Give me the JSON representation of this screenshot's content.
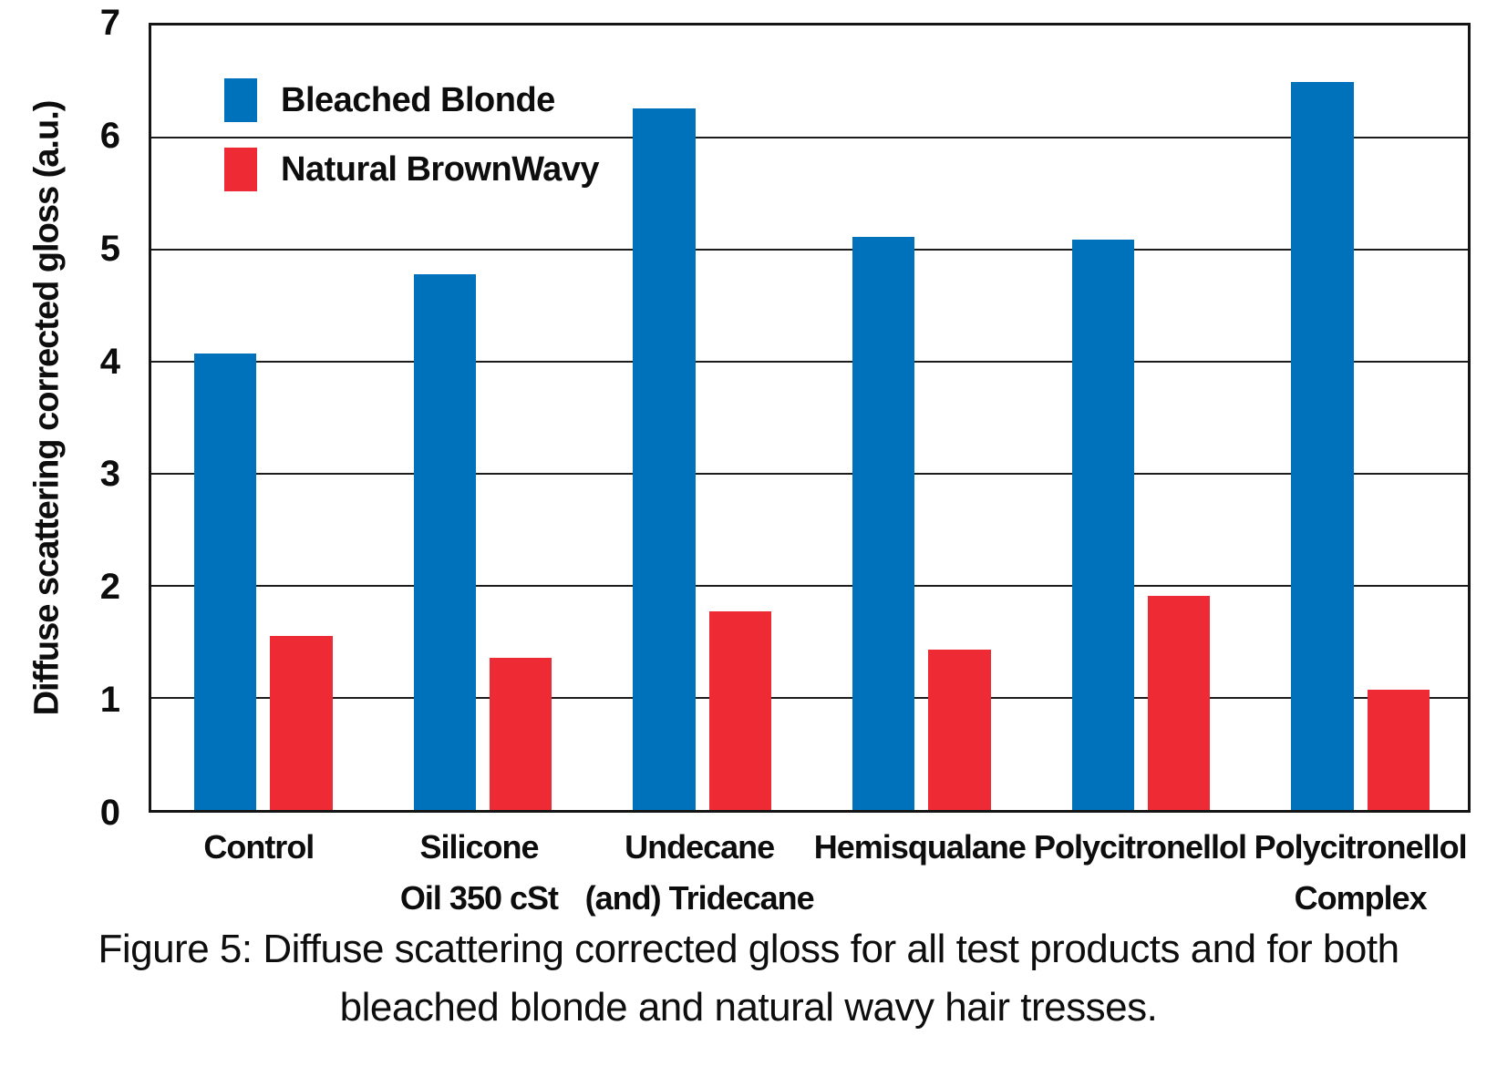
{
  "figure": {
    "caption_line1": "Figure 5: Diffuse scattering corrected gloss for all test products and for both",
    "caption_line2": "bleached blonde and natural wavy hair tresses."
  },
  "chart_data": {
    "type": "bar",
    "title": "",
    "xlabel": "",
    "ylabel": "Diffuse scattering corrected gloss (a.u.)",
    "ylim": [
      0,
      7
    ],
    "yticks": [
      0,
      1,
      2,
      3,
      4,
      5,
      6,
      7
    ],
    "grid": "horizontal-black-lines",
    "legend_position": "top-left-inside-plot",
    "categories": [
      "Control",
      "Silicone Oil 350 cSt",
      "Undecane (and) Tridecane",
      "Hemisqualane",
      "Polycitronellol",
      "Polycitronellol Complex"
    ],
    "category_label_lines": [
      [
        "Control"
      ],
      [
        "Silicone",
        "Oil 350 cSt"
      ],
      [
        "Undecane",
        "(and) Tridecane"
      ],
      [
        "Hemisqualane"
      ],
      [
        "Polycitronellol"
      ],
      [
        "Polycitronellol",
        "Complex"
      ]
    ],
    "series": [
      {
        "name": "Bleached Blonde",
        "color": "#0072BC",
        "values": [
          4.07,
          4.78,
          6.26,
          5.11,
          5.09,
          6.5
        ]
      },
      {
        "name": "Natural BrownWavy",
        "color": "#EE2A35",
        "values": [
          1.55,
          1.36,
          1.77,
          1.43,
          1.91,
          1.07
        ]
      }
    ],
    "axis_color": "#151515",
    "background_color": "#ffffff"
  }
}
